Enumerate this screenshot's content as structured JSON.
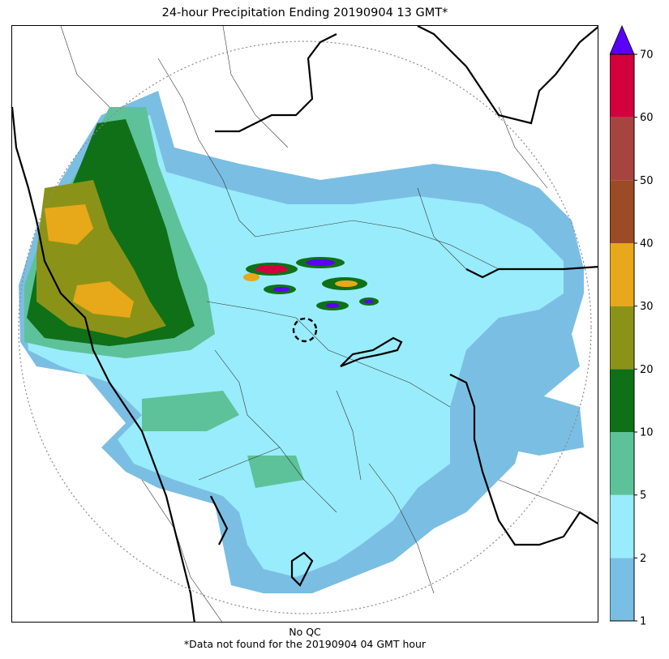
{
  "title": "24-hour Precipitation Ending 20190904 13 GMT*",
  "footer": {
    "qc_note": "No QC",
    "missing_note": "*Data not found for the 20190904 04 GMT hour"
  },
  "colorbar": {
    "ticks": [
      "1",
      "2",
      "5",
      "10",
      "20",
      "30",
      "40",
      "50",
      "60",
      "70"
    ],
    "bins": [
      {
        "color": "#7bbee3"
      },
      {
        "color": "#99ecfb"
      },
      {
        "color": "#5dc29a"
      },
      {
        "color": "#0f7018"
      },
      {
        "color": "#8a9317"
      },
      {
        "color": "#e7a81a"
      },
      {
        "color": "#9b4b25"
      },
      {
        "color": "#a6453f"
      },
      {
        "color": "#d2003d"
      }
    ],
    "extend_color": "#5a00f5"
  },
  "colors": {
    "range_ring": "#8a8a8a",
    "borders_major": "#000000",
    "borders_minor": "#333333"
  }
}
